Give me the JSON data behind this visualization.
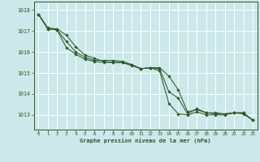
{
  "bg_color": "#cce8ea",
  "grid_color": "#ffffff",
  "line_color": "#2d5a27",
  "marker_color": "#2d5a27",
  "xlabel": "Graphe pression niveau de la mer (hPa)",
  "xlabel_color": "#2d5a27",
  "ylabel_ticks": [
    1013,
    1014,
    1015,
    1016,
    1017,
    1018
  ],
  "xlim": [
    -0.5,
    23.5
  ],
  "ylim": [
    1012.3,
    1018.4
  ],
  "xticks": [
    0,
    1,
    2,
    3,
    4,
    5,
    6,
    7,
    8,
    9,
    10,
    11,
    12,
    13,
    14,
    15,
    16,
    17,
    18,
    19,
    20,
    21,
    22,
    23
  ],
  "series": [
    [
      1017.8,
      1017.15,
      1017.1,
      1016.8,
      1016.25,
      1015.85,
      1015.7,
      1015.55,
      1015.5,
      1015.5,
      1015.4,
      1015.2,
      1015.25,
      1015.25,
      1014.85,
      1014.2,
      1013.15,
      1013.25,
      1013.1,
      1013.1,
      1013.05,
      1013.1,
      1013.1,
      1012.75
    ],
    [
      1017.8,
      1017.1,
      1017.05,
      1016.5,
      1016.0,
      1015.75,
      1015.6,
      1015.6,
      1015.6,
      1015.55,
      1015.4,
      1015.2,
      1015.25,
      1015.2,
      1014.1,
      1013.8,
      1013.05,
      1013.3,
      1013.1,
      1013.05,
      1013.05,
      1013.1,
      1013.1,
      1012.75
    ],
    [
      1017.8,
      1017.1,
      1017.05,
      1016.2,
      1015.9,
      1015.65,
      1015.55,
      1015.5,
      1015.5,
      1015.5,
      1015.35,
      1015.2,
      1015.25,
      1015.1,
      1013.55,
      1013.05,
      1013.0,
      1013.15,
      1013.0,
      1013.0,
      1013.0,
      1013.1,
      1013.05,
      1012.75
    ]
  ],
  "grid_minor_color": "#e8f4f5"
}
